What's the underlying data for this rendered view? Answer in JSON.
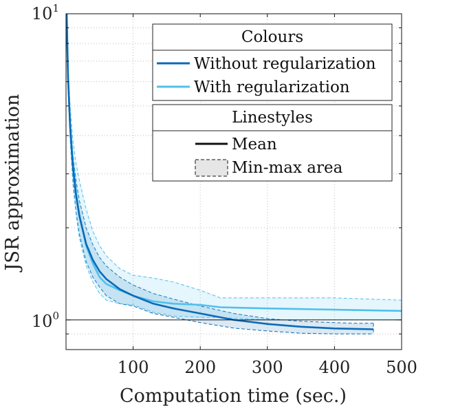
{
  "chart_data": {
    "type": "line",
    "xlabel": "Computation time (sec.)",
    "ylabel": "JSR approximation",
    "xlim": [
      0,
      500
    ],
    "ylim": [
      0.8,
      10
    ],
    "yscale": "log",
    "xticks": [
      100,
      200,
      300,
      400,
      500
    ],
    "yticks": [
      {
        "base": "10",
        "exp": "0",
        "value": 1
      },
      {
        "base": "10",
        "exp": "1",
        "value": 10
      }
    ],
    "grid": true,
    "reference_line_y": 1,
    "colors": {
      "without": "#0a6ab8",
      "with": "#4fc0ec"
    },
    "series": [
      {
        "name": "Without regularization",
        "color": "#0a6ab8",
        "mean": {
          "x": [
            1,
            3,
            6,
            10,
            15,
            20,
            30,
            40,
            50,
            60,
            80,
            100,
            130,
            160,
            200,
            250,
            300,
            350,
            400,
            430,
            458
          ],
          "y": [
            10,
            6.2,
            4.3,
            3.2,
            2.55,
            2.18,
            1.77,
            1.57,
            1.44,
            1.36,
            1.26,
            1.2,
            1.13,
            1.09,
            1.05,
            1.0,
            0.97,
            0.95,
            0.938,
            0.935,
            0.932
          ]
        },
        "min": {
          "x": [
            1,
            3,
            6,
            10,
            15,
            20,
            30,
            40,
            50,
            60,
            80,
            100,
            130,
            160,
            200,
            250,
            300,
            350,
            400,
            430,
            458
          ],
          "y": [
            10,
            5.9,
            4.0,
            2.9,
            2.25,
            1.9,
            1.55,
            1.38,
            1.28,
            1.2,
            1.13,
            1.11,
            1.05,
            1.02,
            0.98,
            0.94,
            0.92,
            0.905,
            0.9,
            0.9,
            0.9
          ]
        },
        "max": {
          "x": [
            1,
            3,
            6,
            10,
            15,
            20,
            30,
            40,
            50,
            60,
            80,
            100,
            130,
            160,
            200,
            250,
            300,
            350,
            400,
            430,
            458
          ],
          "y": [
            10,
            6.5,
            4.6,
            3.5,
            2.85,
            2.45,
            2.0,
            1.76,
            1.6,
            1.5,
            1.38,
            1.3,
            1.22,
            1.17,
            1.11,
            1.05,
            1.01,
            0.99,
            0.98,
            0.975,
            0.975
          ]
        }
      },
      {
        "name": "With regularization",
        "color": "#4fc0ec",
        "mean": {
          "x": [
            1,
            3,
            6,
            10,
            15,
            20,
            30,
            40,
            50,
            60,
            80,
            100,
            130,
            160,
            200,
            230,
            300,
            400,
            500
          ],
          "y": [
            10,
            6.3,
            4.4,
            3.3,
            2.6,
            2.2,
            1.75,
            1.53,
            1.38,
            1.31,
            1.25,
            1.2,
            1.15,
            1.13,
            1.12,
            1.1,
            1.09,
            1.08,
            1.07
          ]
        },
        "min": {
          "x": [
            1,
            3,
            6,
            10,
            15,
            20,
            30,
            40,
            50,
            60,
            80,
            100,
            130,
            160,
            200,
            230,
            260,
            300,
            400,
            500
          ],
          "y": [
            10,
            5.8,
            3.9,
            2.8,
            2.2,
            1.85,
            1.5,
            1.33,
            1.22,
            1.16,
            1.13,
            1.12,
            1.06,
            1.03,
            1.02,
            1.02,
            1.01,
            1.0,
            1.0,
            1.0
          ]
        },
        "max": {
          "x": [
            1,
            3,
            6,
            10,
            15,
            20,
            30,
            40,
            50,
            60,
            80,
            100,
            130,
            160,
            200,
            230,
            300,
            400,
            500
          ],
          "y": [
            10,
            7.0,
            5.0,
            3.9,
            3.25,
            2.85,
            2.3,
            1.95,
            1.75,
            1.62,
            1.47,
            1.4,
            1.37,
            1.33,
            1.25,
            1.18,
            1.18,
            1.18,
            1.16
          ]
        }
      }
    ],
    "legend": {
      "placement": "top-right",
      "colours_title": "Colours",
      "linestyles_title": "Linestyles",
      "mean_label": "Mean",
      "area_label": "Min-max area"
    }
  }
}
